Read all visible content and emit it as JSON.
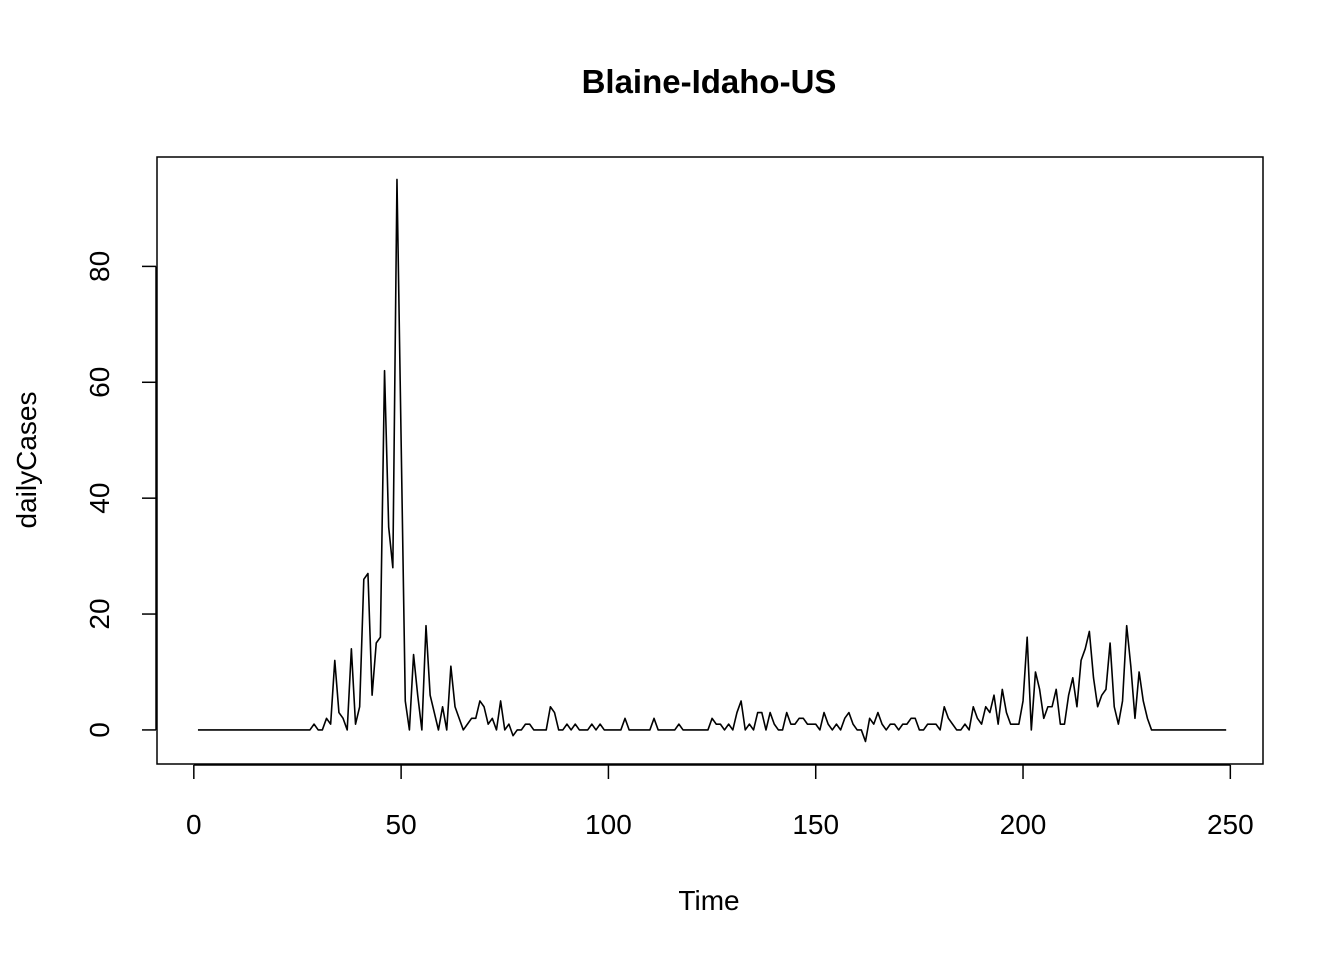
{
  "chart_data": {
    "type": "line",
    "title": "Blaine-Idaho-US",
    "xlabel": "Time",
    "ylabel": "dailyCases",
    "xlim": [
      1,
      248
    ],
    "ylim": [
      -2,
      95
    ],
    "x_ticks": [
      0,
      50,
      100,
      150,
      200,
      250
    ],
    "y_ticks": [
      0,
      20,
      40,
      60,
      80
    ],
    "grid": false,
    "line_color": "#000000",
    "series": [
      {
        "x_start": 1,
        "values": [
          0,
          0,
          0,
          0,
          0,
          0,
          0,
          0,
          0,
          0,
          0,
          0,
          0,
          0,
          0,
          0,
          0,
          0,
          0,
          0,
          0,
          0,
          0,
          0,
          0,
          0,
          0,
          0,
          1,
          0,
          0,
          2,
          1,
          12,
          3,
          2,
          0,
          14,
          1,
          4,
          26,
          27,
          6,
          15,
          16,
          62,
          35,
          28,
          95,
          50,
          5,
          0,
          13,
          6,
          0,
          18,
          6,
          3,
          0,
          4,
          0,
          11,
          4,
          2,
          0,
          1,
          2,
          2,
          5,
          4,
          1,
          2,
          0,
          5,
          0,
          1,
          -1,
          0,
          0,
          1,
          1,
          0,
          0,
          0,
          0,
          4,
          3,
          0,
          0,
          1,
          0,
          1,
          0,
          0,
          0,
          1,
          0,
          1,
          0,
          0,
          0,
          0,
          0,
          2,
          0,
          0,
          0,
          0,
          0,
          0,
          2,
          0,
          0,
          0,
          0,
          0,
          1,
          0,
          0,
          0,
          0,
          0,
          0,
          0,
          2,
          1,
          1,
          0,
          1,
          0,
          3,
          5,
          0,
          1,
          0,
          3,
          3,
          0,
          3,
          1,
          0,
          0,
          3,
          1,
          1,
          2,
          2,
          1,
          1,
          1,
          0,
          3,
          1,
          0,
          1,
          0,
          2,
          3,
          1,
          0,
          0,
          -2,
          2,
          1,
          3,
          1,
          0,
          1,
          1,
          0,
          1,
          1,
          2,
          2,
          0,
          0,
          1,
          1,
          1,
          0,
          4,
          2,
          1,
          0,
          0,
          1,
          0,
          4,
          2,
          1,
          4,
          3,
          6,
          1,
          7,
          3,
          1,
          1,
          1,
          5,
          16,
          0,
          10,
          7,
          2,
          4,
          4,
          7,
          1,
          1,
          6,
          9,
          4,
          12,
          14,
          17,
          9,
          4,
          6,
          7,
          15,
          4,
          1,
          5,
          18,
          11,
          2,
          10,
          5,
          2,
          0,
          0,
          0,
          0,
          0,
          0,
          0,
          0,
          0,
          0,
          0,
          0,
          0,
          0,
          0,
          0,
          0,
          0,
          0
        ]
      }
    ]
  }
}
